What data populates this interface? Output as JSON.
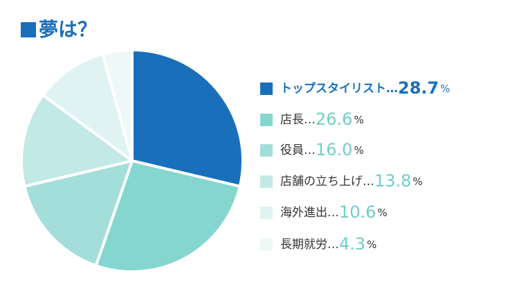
{
  "chart_data": {
    "type": "pie",
    "title": "夢は？",
    "categories": [
      "トップスタイリスト",
      "店長",
      "役員",
      "店舗の立ち上げ",
      "海外進出",
      "長期就労"
    ],
    "values": [
      28.7,
      26.6,
      16.0,
      13.8,
      10.6,
      4.3
    ],
    "value_labels": [
      "28.7",
      "26.6",
      "16.0",
      "13.8",
      "10.6",
      "4.3"
    ],
    "separator": "…",
    "unit": "%",
    "colors": [
      "#1a6fbb",
      "#85d6cf",
      "#a3dedb",
      "#c3e9e6",
      "#dff3f2",
      "#eef8f7"
    ]
  }
}
